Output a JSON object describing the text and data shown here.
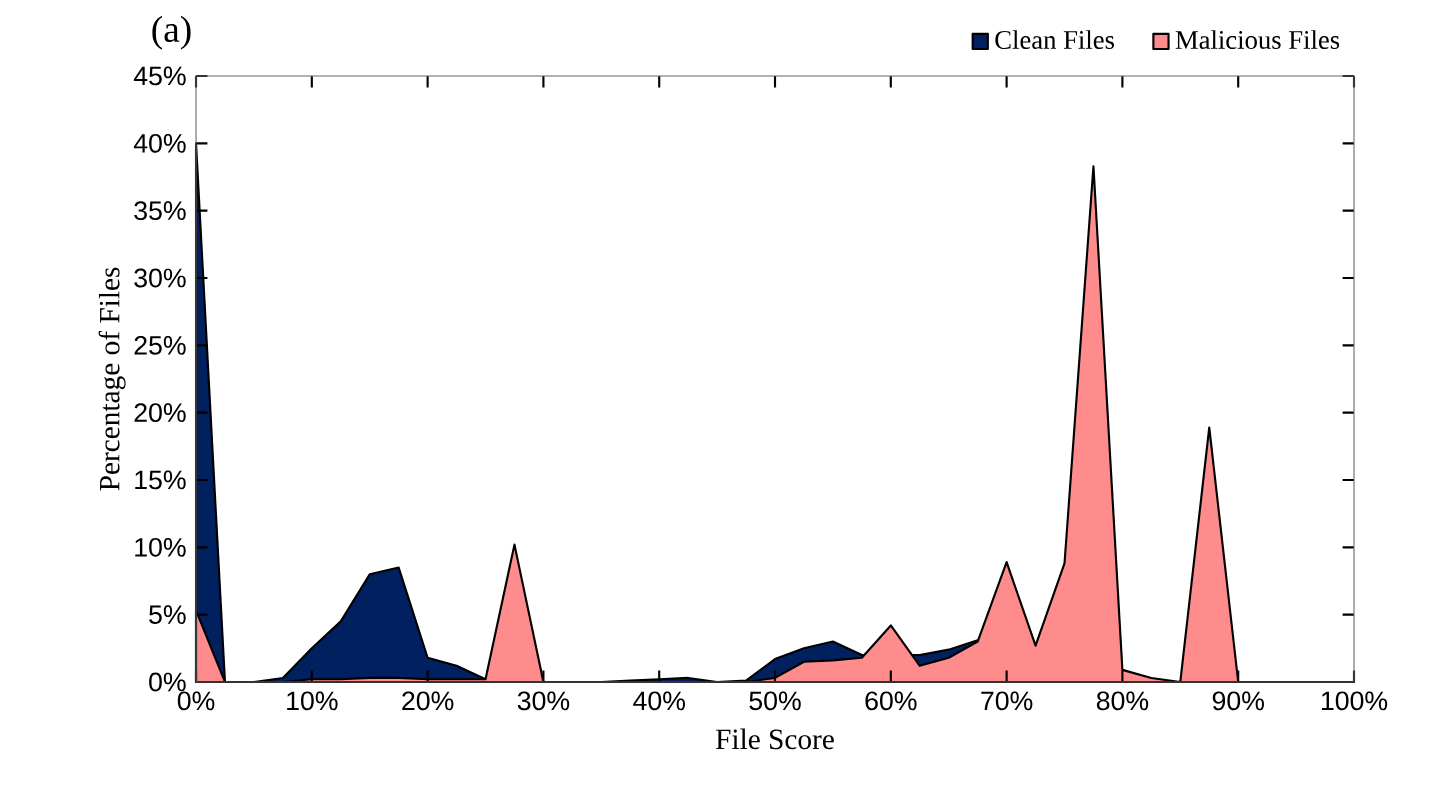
{
  "chart_data": {
    "type": "area",
    "title": "(a)",
    "xlabel": "File Score",
    "ylabel": "Percentage of Files",
    "x": [
      0,
      2.5,
      5,
      7.5,
      10,
      12.5,
      15,
      17.5,
      20,
      22.5,
      25,
      27.5,
      30,
      32.5,
      35,
      37.5,
      40,
      42.5,
      45,
      47.5,
      50,
      52.5,
      55,
      57.5,
      60,
      62.5,
      65,
      67.5,
      70,
      72.5,
      75,
      77.5,
      80,
      82.5,
      85,
      87.5,
      90,
      92.5,
      95,
      97.5,
      100
    ],
    "series": [
      {
        "name": "Clean Files",
        "color": "#002060",
        "values": [
          40,
          0,
          0,
          0.3,
          2.5,
          4.5,
          8,
          8.5,
          1.8,
          1.2,
          0.2,
          null,
          0,
          0,
          0,
          0.1,
          0.2,
          0.3,
          0,
          0.1,
          1.7,
          2.5,
          3.0,
          2.0,
          null,
          2.0,
          2.4,
          3.1,
          null,
          null,
          null,
          null,
          null,
          0,
          0,
          null,
          0,
          0,
          0,
          0,
          0
        ]
      },
      {
        "name": "Malicious Files",
        "color": "#ff8c8c",
        "values": [
          5.3,
          0,
          0,
          0,
          0.2,
          0.2,
          0.3,
          0.3,
          0.2,
          0.2,
          0.2,
          10.2,
          0,
          0,
          0,
          0,
          0,
          0,
          0,
          0,
          0.3,
          1.5,
          1.6,
          1.8,
          4.2,
          1.2,
          1.8,
          3.0,
          8.9,
          2.7,
          8.8,
          38.3,
          0.9,
          0.3,
          0,
          18.9,
          0,
          0,
          0,
          0,
          0
        ]
      }
    ],
    "xlim": [
      0,
      100
    ],
    "ylim": [
      0,
      45
    ],
    "xticks": [
      {
        "value": 0,
        "label": "0%"
      },
      {
        "value": 10,
        "label": "10%"
      },
      {
        "value": 20,
        "label": "20%"
      },
      {
        "value": 30,
        "label": "30%"
      },
      {
        "value": 40,
        "label": "40%"
      },
      {
        "value": 50,
        "label": "50%"
      },
      {
        "value": 60,
        "label": "60%"
      },
      {
        "value": 70,
        "label": "70%"
      },
      {
        "value": 80,
        "label": "80%"
      },
      {
        "value": 90,
        "label": "90%"
      },
      {
        "value": 100,
        "label": "100%"
      }
    ],
    "yticks": [
      {
        "value": 0,
        "label": "0%"
      },
      {
        "value": 5,
        "label": "5%"
      },
      {
        "value": 10,
        "label": "10%"
      },
      {
        "value": 15,
        "label": "15%"
      },
      {
        "value": 20,
        "label": "20%"
      },
      {
        "value": 25,
        "label": "25%"
      },
      {
        "value": 30,
        "label": "30%"
      },
      {
        "value": 35,
        "label": "35%"
      },
      {
        "value": 40,
        "label": "40%"
      },
      {
        "value": 45,
        "label": "45%"
      }
    ],
    "grid": false,
    "legend": "top right"
  }
}
